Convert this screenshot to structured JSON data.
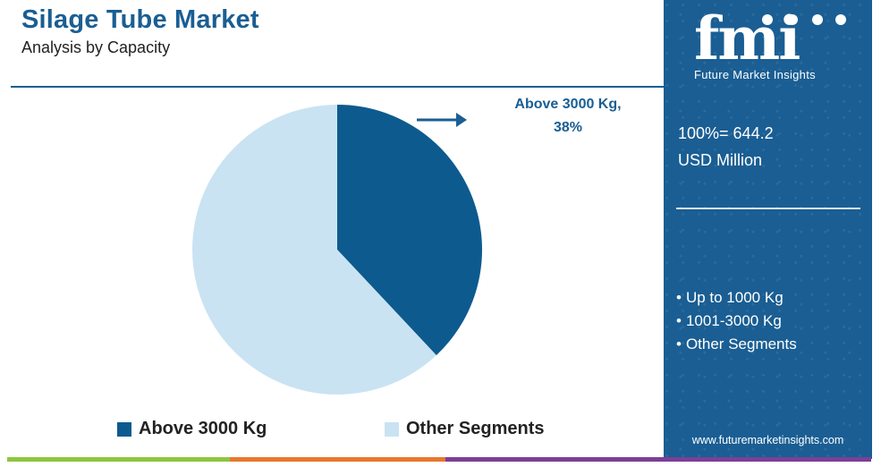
{
  "header": {
    "title": "Silage Tube Market",
    "subtitle": "Analysis by Capacity"
  },
  "chart_data": {
    "type": "pie",
    "slices": [
      {
        "label": "Above 3000 Kg",
        "value": 38,
        "color": "#0d5a8f"
      },
      {
        "label": "Other Segments",
        "value": 62,
        "color": "#c9e3f3"
      }
    ],
    "callout": {
      "label": "Above 3000 Kg,",
      "value": "38%"
    },
    "legend": [
      {
        "label": "Above 3000 Kg",
        "color": "#0d5a8f"
      },
      {
        "label": "Other Segments",
        "color": "#c9e3f3"
      }
    ],
    "legend_position": "bottom"
  },
  "sidebar": {
    "logo_letters": "fmi",
    "brand": "Future Market Insights",
    "total_line1": "100%= 644.2",
    "total_line2": "USD Million",
    "other_segments": [
      "Up to 1000 Kg",
      "1001-3000 Kg",
      "Other Segments"
    ],
    "website": "www.futuremarketinsights.com",
    "color": "#1a5e93"
  },
  "footer_colors": [
    "#8dc63f",
    "#e8772e",
    "#7b3f98"
  ]
}
